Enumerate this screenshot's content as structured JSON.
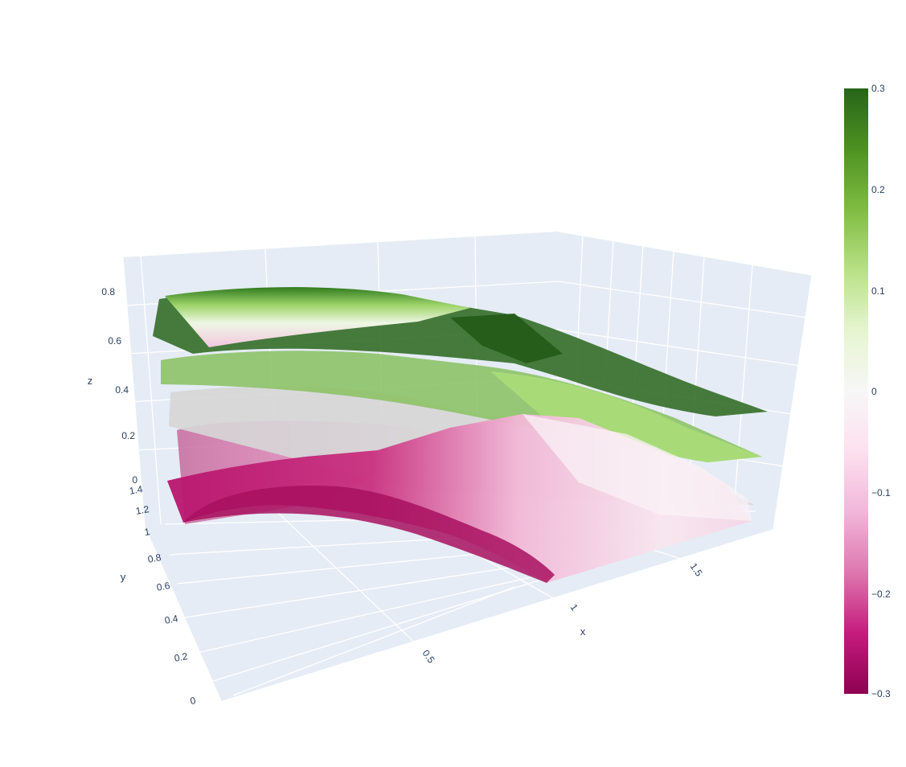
{
  "chart_data": {
    "type": "surface",
    "axes": {
      "x": {
        "label": "x",
        "ticks": [
          "0.5",
          "1",
          "1.5"
        ]
      },
      "y": {
        "label": "y",
        "ticks": [
          "0",
          "0.2",
          "0.4",
          "0.6",
          "0.8",
          "1",
          "1.2",
          "1.4"
        ]
      },
      "z": {
        "label": "z",
        "ticks": [
          "0",
          "0.2",
          "0.4",
          "0.6",
          "0.8"
        ]
      }
    },
    "colorbar": {
      "ticks": [
        "0.3",
        "0.2",
        "0.1",
        "0",
        "−0.1",
        "−0.2",
        "−0.3"
      ],
      "range": [
        -0.3,
        0.3
      ],
      "colorscale": "PiYG",
      "colors": [
        "#8e0152",
        "#c51b7d",
        "#de77ae",
        "#f1b6da",
        "#fde0ef",
        "#f7f7f7",
        "#e6f5d0",
        "#b8e186",
        "#7fbc41",
        "#4d9221",
        "#276419"
      ]
    },
    "surfaces": [
      {
        "level": 0.75,
        "color_value": 0.3
      },
      {
        "level": 0.5,
        "color_value": 0.15
      },
      {
        "level": 0.4,
        "color_value": 0.0
      },
      {
        "level": 0.1,
        "color_value": -0.15
      }
    ],
    "grid": true
  }
}
